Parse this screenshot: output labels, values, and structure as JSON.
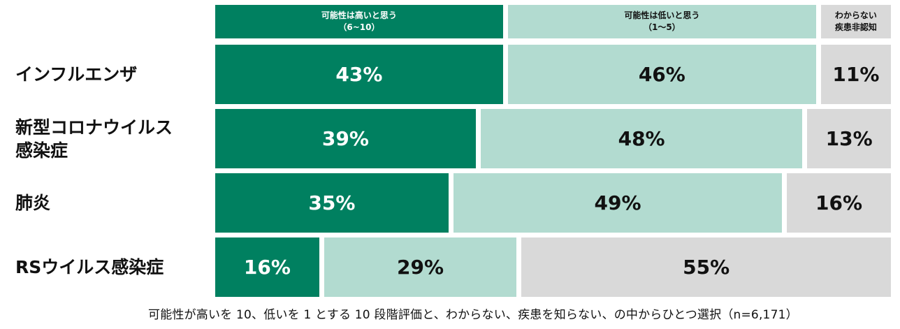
{
  "colors": {
    "high": "#008060",
    "low": "#b2dbd0",
    "unknown": "#d9d9d9",
    "high_text": "#ffffff",
    "dark_text": "#111111"
  },
  "legend": [
    {
      "label": "可能性は高いと思う",
      "sublabel": "（6~10）",
      "color": "#008060",
      "text_color": "#ffffff"
    },
    {
      "label": "可能性は低いと思う",
      "sublabel": "（1～5）",
      "color": "#b2dbd0",
      "text_color": "#111111"
    },
    {
      "label": "わからない",
      "sublabel": "疾患非認知",
      "color": "#d9d9d9",
      "text_color": "#111111"
    }
  ],
  "chart_data": {
    "type": "bar",
    "orientation": "horizontal",
    "stacked": "100%",
    "categories": [
      "インフルエンザ",
      "新型コロナウイルス感染症",
      "肺炎",
      "RSウイルス感染症"
    ],
    "category_lines": [
      [
        "インフルエンザ"
      ],
      [
        "新型コロナウイルス",
        "感染症"
      ],
      [
        "肺炎"
      ],
      [
        "RSウイルス感染症"
      ]
    ],
    "series": [
      {
        "name": "可能性は高いと思う（6~10）",
        "values": [
          43,
          39,
          35,
          16
        ]
      },
      {
        "name": "可能性は低いと思う（1～5）",
        "values": [
          46,
          48,
          49,
          29
        ]
      },
      {
        "name": "わからない 疾患非認知",
        "values": [
          11,
          13,
          16,
          55
        ]
      }
    ],
    "value_suffix": "%",
    "grid": false,
    "legend_position": "top"
  },
  "footnote": "可能性が高いを 10、低いを 1 とする 10 段階評価と、わからない、疾患を知らない、の中からひとつ選択（n=6,171）"
}
